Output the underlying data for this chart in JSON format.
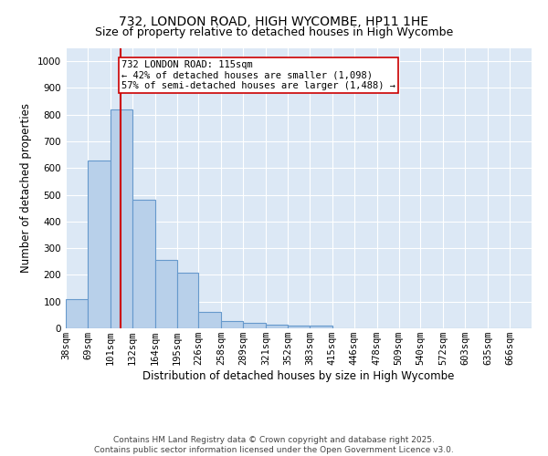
{
  "title": "732, LONDON ROAD, HIGH WYCOMBE, HP11 1HE",
  "subtitle": "Size of property relative to detached houses in High Wycombe",
  "xlabel": "Distribution of detached houses by size in High Wycombe",
  "ylabel": "Number of detached properties",
  "bin_labels": [
    "38sqm",
    "69sqm",
    "101sqm",
    "132sqm",
    "164sqm",
    "195sqm",
    "226sqm",
    "258sqm",
    "289sqm",
    "321sqm",
    "352sqm",
    "383sqm",
    "415sqm",
    "446sqm",
    "478sqm",
    "509sqm",
    "540sqm",
    "572sqm",
    "603sqm",
    "635sqm",
    "666sqm"
  ],
  "bin_edges": [
    38,
    69,
    101,
    132,
    164,
    195,
    226,
    258,
    289,
    321,
    352,
    383,
    415,
    446,
    478,
    509,
    540,
    572,
    603,
    635,
    666,
    697
  ],
  "bar_heights": [
    110,
    630,
    820,
    480,
    255,
    210,
    60,
    27,
    20,
    15,
    10,
    10,
    0,
    0,
    0,
    0,
    0,
    0,
    0,
    0,
    0
  ],
  "bar_color": "#b8d0ea",
  "bar_edge_color": "#6699cc",
  "vline_x": 115,
  "vline_color": "#cc0000",
  "annotation_line1": "732 LONDON ROAD: 115sqm",
  "annotation_line2": "← 42% of detached houses are smaller (1,098)",
  "annotation_line3": "57% of semi-detached houses are larger (1,488) →",
  "annotation_box_color": "#ffffff",
  "annotation_box_edge_color": "#cc0000",
  "ylim": [
    0,
    1050
  ],
  "yticks": [
    0,
    100,
    200,
    300,
    400,
    500,
    600,
    700,
    800,
    900,
    1000
  ],
  "background_color": "#dce8f5",
  "grid_color": "#ffffff",
  "footer_line1": "Contains HM Land Registry data © Crown copyright and database right 2025.",
  "footer_line2": "Contains public sector information licensed under the Open Government Licence v3.0.",
  "title_fontsize": 10,
  "subtitle_fontsize": 9,
  "axis_label_fontsize": 8.5,
  "tick_fontsize": 7.5,
  "annotation_fontsize": 7.5,
  "footer_fontsize": 6.5
}
